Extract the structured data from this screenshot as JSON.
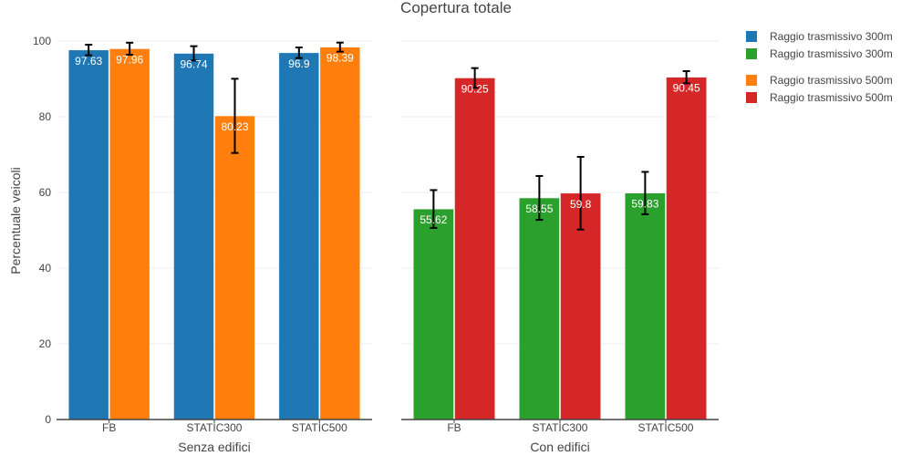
{
  "chart_data": {
    "type": "bar",
    "title": "Copertura totale",
    "ylabel": "Percentuale veicoli",
    "ylim": [
      0,
      100
    ],
    "yticks": [
      0,
      20,
      40,
      60,
      80,
      100
    ],
    "grid": true,
    "legend_placement": "top-right",
    "panels": [
      {
        "xlabel": "Senza edifici",
        "categories": [
          "FB",
          "STATIC300",
          "STATIC500"
        ],
        "series": [
          {
            "name": "Raggio trasmissivo 300m",
            "color": "#1f77b4",
            "values": [
              97.63,
              96.74,
              96.9
            ],
            "errors": [
              1.4,
              1.9,
              1.4
            ]
          },
          {
            "name": "Raggio trasmissivo 500m",
            "color": "#ff7f0e",
            "values": [
              97.96,
              80.23,
              98.39
            ],
            "errors": [
              1.6,
              9.8,
              1.2
            ]
          }
        ]
      },
      {
        "xlabel": "Con edifici",
        "categories": [
          "FB",
          "STATIC300",
          "STATIC500"
        ],
        "series": [
          {
            "name": "Raggio trasmissivo 300m",
            "color": "#2ca02c",
            "values": [
              55.62,
              58.55,
              59.83
            ],
            "errors": [
              5.0,
              5.8,
              5.6
            ]
          },
          {
            "name": "Raggio trasmissivo 500m",
            "color": "#d62728",
            "values": [
              90.25,
              59.8,
              90.45
            ],
            "errors": [
              2.6,
              9.6,
              1.6
            ]
          }
        ]
      }
    ]
  }
}
